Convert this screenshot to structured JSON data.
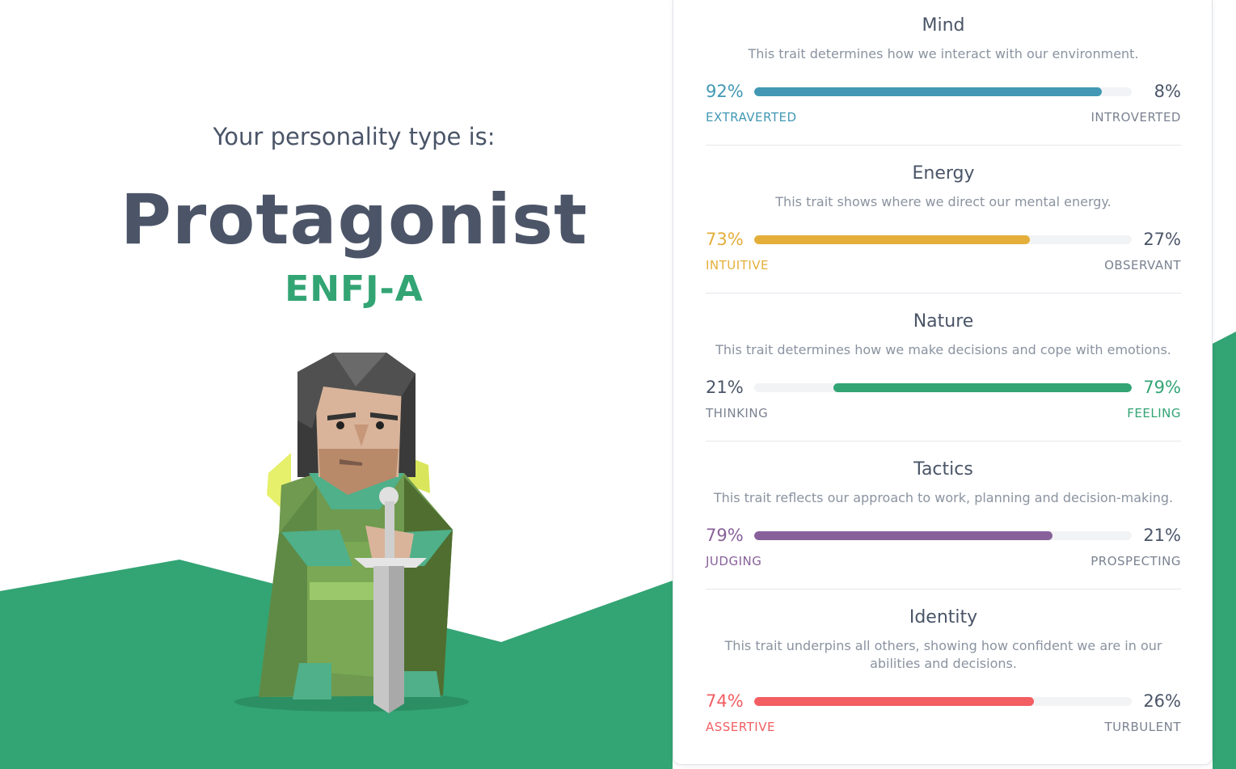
{
  "intro_text": "Your personality type is:",
  "type_name": "Protagonist",
  "type_code": "ENFJ-A",
  "colors": {
    "mind": "#4298b4",
    "energy": "#e4ae3a",
    "nature": "#33a474",
    "tactics": "#88619a",
    "identity": "#f25e62",
    "hills": "#33a474"
  },
  "traits": [
    {
      "title": "Mind",
      "description": "This trait determines how we interact with our environment.",
      "left_pct": "92%",
      "right_pct": "8%",
      "left_label": "EXTRAVERTED",
      "right_label": "INTROVERTED",
      "dominant": "left",
      "fraction": 0.92,
      "color": "#4298b4"
    },
    {
      "title": "Energy",
      "description": "This trait shows where we direct our mental energy.",
      "left_pct": "73%",
      "right_pct": "27%",
      "left_label": "INTUITIVE",
      "right_label": "OBSERVANT",
      "dominant": "left",
      "fraction": 0.73,
      "color": "#e4ae3a"
    },
    {
      "title": "Nature",
      "description": "This trait determines how we make decisions and cope with emotions.",
      "left_pct": "21%",
      "right_pct": "79%",
      "left_label": "THINKING",
      "right_label": "FEELING",
      "dominant": "right",
      "fraction": 0.79,
      "color": "#33a474"
    },
    {
      "title": "Tactics",
      "description": "This trait reflects our approach to work, planning and decision-making.",
      "left_pct": "79%",
      "right_pct": "21%",
      "left_label": "JUDGING",
      "right_label": "PROSPECTING",
      "dominant": "left",
      "fraction": 0.79,
      "color": "#88619a"
    },
    {
      "title": "Identity",
      "description": "This trait underpins all others, showing how confident we are in our abilities and decisions.",
      "left_pct": "74%",
      "right_pct": "26%",
      "left_label": "ASSERTIVE",
      "right_label": "TURBULENT",
      "dominant": "left",
      "fraction": 0.74,
      "color": "#f25e62"
    }
  ]
}
